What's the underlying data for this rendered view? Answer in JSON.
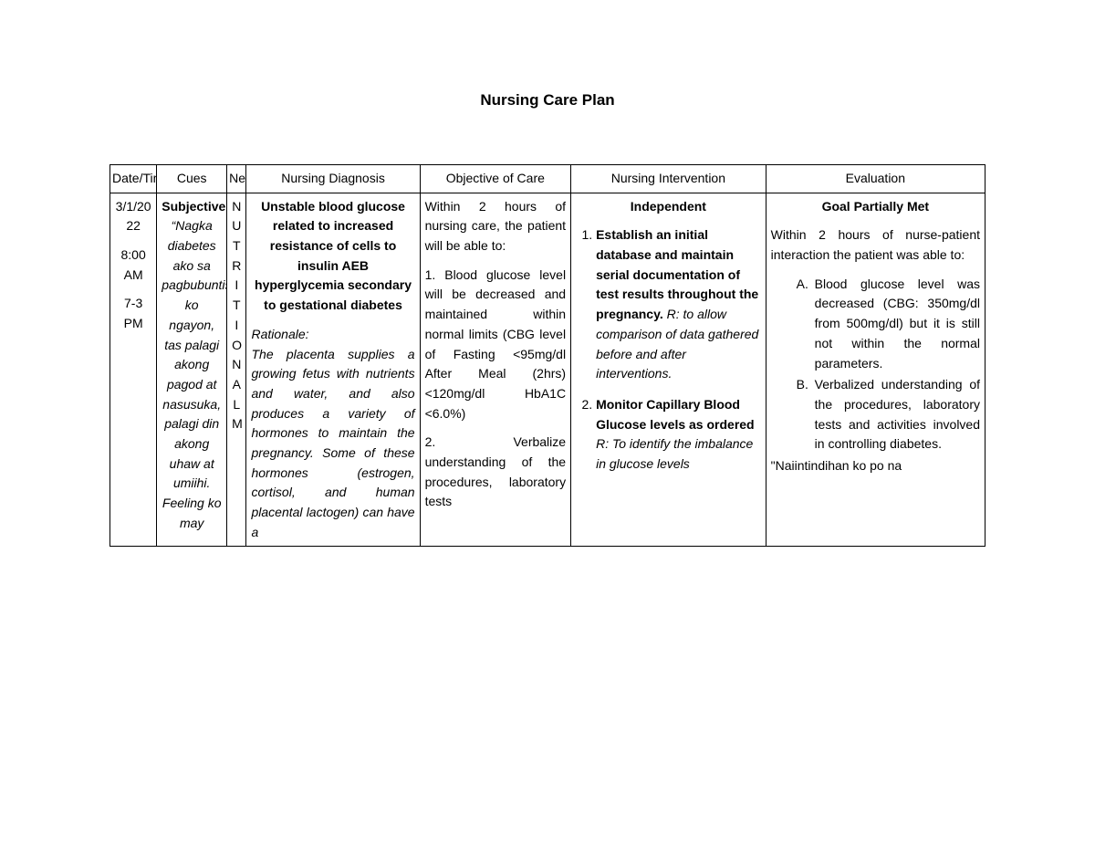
{
  "title": "Nursing Care Plan",
  "table": {
    "headers": {
      "date": "Date/Time/Shift",
      "cues": "Cues",
      "need": "Need",
      "diagnosis": "Nursing Diagnosis",
      "objective": "Objective of Care",
      "intervention": "Nursing Intervention",
      "evaluation": "Evaluation"
    },
    "row": {
      "date": {
        "date": "3/1/2022",
        "time": "8:00 AM",
        "shift": "7-3 PM"
      },
      "cues": {
        "label": "Subjective:",
        "quote": "“Nagka diabetes ako sa pagbubuntis ko ngayon, tas palagi akong pagod at nasusuka, palagi din akong uhaw at umiihi. Feeling ko may"
      },
      "need_letters": [
        "N",
        "U",
        "T",
        "R",
        "I",
        "T",
        "I",
        "O",
        "N",
        "A",
        "L",
        "M"
      ],
      "diagnosis": {
        "statement": "Unstable blood glucose related to increased resistance of cells to insulin AEB hyperglycemia secondary to gestational diabetes",
        "rationale_label": "Rationale:",
        "rationale_body": "The placenta supplies a growing fetus with nutrients and water, and also produces a variety of hormones to maintain the pregnancy. Some of these hormones (estrogen, cortisol, and human placental lactogen) can have a"
      },
      "objective": {
        "lead": "Within 2 hours of nursing care, the patient will be able to:",
        "item1": "1. Blood glucose level will be decreased and maintained within normal limits (CBG level of Fasting <95mg/dl After Meal (2hrs) <120mg/dl HbA1C <6.0%)",
        "item2": "2. Verbalize understanding of the procedures, laboratory tests"
      },
      "intervention": {
        "header": "Independent",
        "items": [
          {
            "bold": "Establish an initial database and maintain serial documentation of test results throughout the pregnancy.",
            "rationale": " R: to allow comparison of data gathered before and after interventions."
          },
          {
            "bold": "Monitor Capillary Blood Glucose levels as ordered",
            "rationale": " R: To identify the imbalance in glucose levels"
          }
        ]
      },
      "evaluation": {
        "header": "Goal Partially Met",
        "lead": "Within 2 hours of nurse-patient interaction the patient was able to:",
        "letters": [
          {
            "lbl": "A.",
            "txt": "Blood glucose level was decreased (CBG: 350mg/dl from 500mg/dl) but it is still not within the normal parameters."
          },
          {
            "lbl": "B.",
            "txt": "Verbalized understanding of the procedures, laboratory tests and activities involved in controlling diabetes."
          }
        ],
        "tail": "\"Naiintindihan ko po na"
      }
    }
  }
}
